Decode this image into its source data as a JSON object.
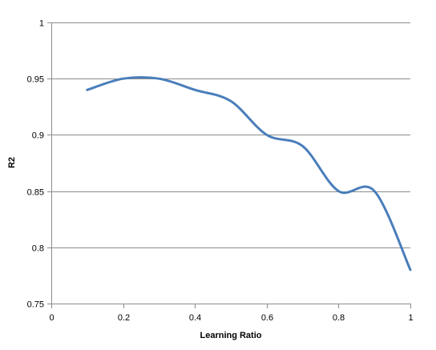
{
  "chart_data": {
    "type": "line",
    "title": "",
    "xlabel": "Learning Ratio",
    "ylabel": "R2",
    "xlim": [
      0,
      1
    ],
    "ylim": [
      0.75,
      1
    ],
    "x_ticks": [
      "0",
      "0.2",
      "0.4",
      "0.6",
      "0.8",
      "1"
    ],
    "y_ticks": [
      "0.75",
      "0.8",
      "0.85",
      "0.9",
      "0.95",
      "1"
    ],
    "grid": "horizontal",
    "legend": "none",
    "series": [
      {
        "color": "#4a7ebb",
        "smooth": true,
        "x": [
          0.1,
          0.2,
          0.3,
          0.4,
          0.5,
          0.6,
          0.7,
          0.8,
          0.9,
          1.0
        ],
        "y": [
          0.94,
          0.95,
          0.95,
          0.94,
          0.93,
          0.9,
          0.89,
          0.85,
          0.85,
          0.78
        ]
      }
    ]
  }
}
